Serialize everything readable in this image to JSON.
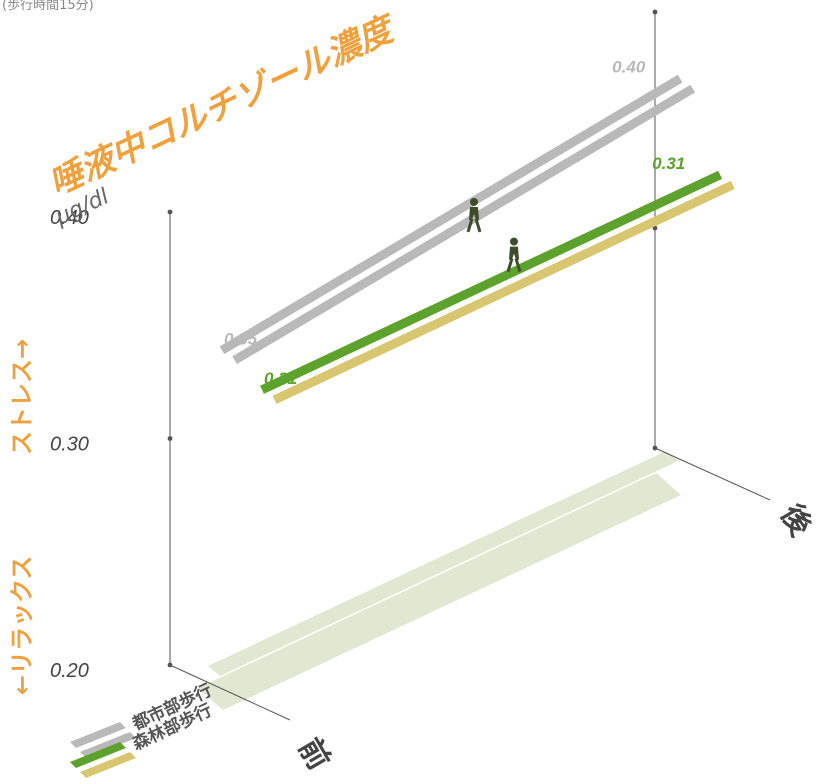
{
  "header": {
    "caption": "(歩行時間15分)"
  },
  "chart_data": {
    "type": "line",
    "title": "唾液中コルチゾール濃度",
    "ylabel_unit": "μg/dl",
    "ylim": [
      0.2,
      0.4
    ],
    "yticks": [
      "0.20",
      "0.30",
      "0.40"
    ],
    "axis_relax_label": "←リラックス",
    "axis_stress_label": "ストレス→",
    "x_start_label": "前",
    "x_end_label": "後",
    "series": [
      {
        "name": "都市部歩行",
        "start": 0.35,
        "end": 0.4,
        "start_label": "0.35",
        "end_label": "0.40",
        "color": "#b9b9b9",
        "color2": "#b9b9b9"
      },
      {
        "name": "森林部歩行",
        "start": 0.31,
        "end": 0.31,
        "start_label": "0.31",
        "end_label": "0.31",
        "color": "#5ca22d",
        "color2": "#d8c670"
      }
    ],
    "colors": {
      "accent": "#f0a03c",
      "floor": "#e2e7d2",
      "axis": "#555555",
      "tick_text": "#444444",
      "figure": "#3f4d2c"
    }
  }
}
